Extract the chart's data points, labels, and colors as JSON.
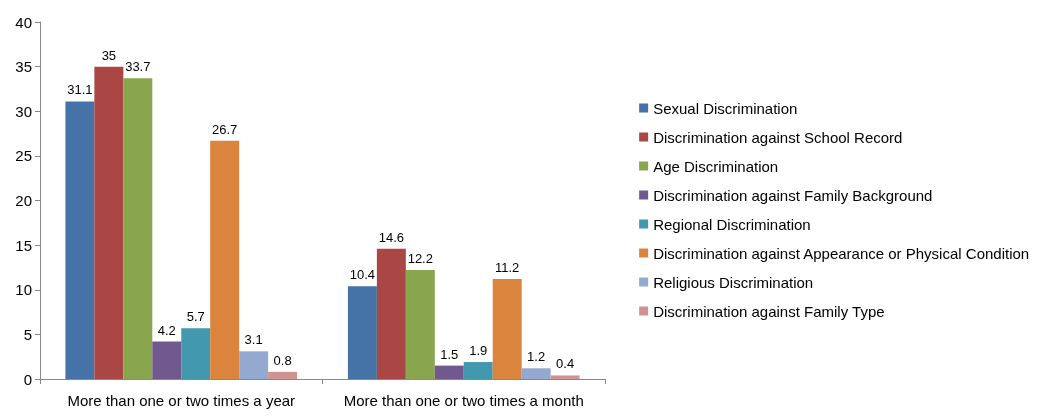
{
  "chart_data": {
    "type": "bar",
    "categories": [
      "More than one or two times a year",
      "More than one or two times a month"
    ],
    "series": [
      {
        "name": "Sexual Discrimination",
        "color": "#4572a7",
        "values": [
          31.1,
          10.4
        ]
      },
      {
        "name": "Discrimination against School Record",
        "color": "#aa4643",
        "values": [
          35,
          14.6
        ]
      },
      {
        "name": "Age Discrimination",
        "color": "#89a54e",
        "values": [
          33.7,
          12.2
        ]
      },
      {
        "name": "Discrimination against Family Background",
        "color": "#71588f",
        "values": [
          4.2,
          1.5
        ]
      },
      {
        "name": "Regional Discrimination",
        "color": "#4198af",
        "values": [
          5.7,
          1.9
        ]
      },
      {
        "name": "Discrimination against Appearance or Physical Condition",
        "color": "#db843d",
        "values": [
          26.7,
          11.2
        ]
      },
      {
        "name": "Religious Discrimination",
        "color": "#93a9cf",
        "values": [
          3.1,
          1.2
        ]
      },
      {
        "name": "Discrimination against Family Type",
        "color": "#d19392",
        "values": [
          0.8,
          0.4
        ]
      }
    ],
    "ylim": [
      0,
      40
    ],
    "yticks": [
      0,
      5,
      10,
      15,
      20,
      25,
      30,
      35,
      40
    ],
    "grid": false,
    "legend": "right",
    "data_labels": true
  }
}
